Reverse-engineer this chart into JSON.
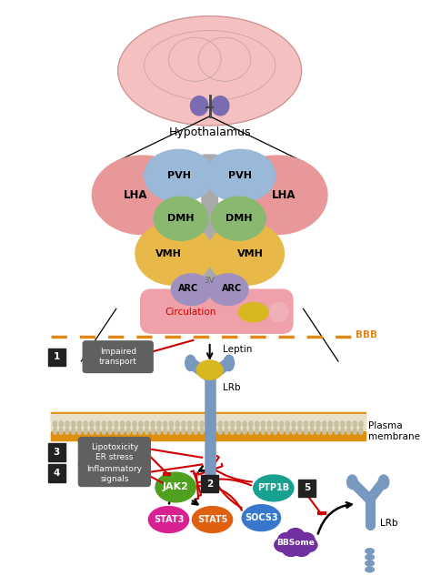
{
  "bg_color": "#ffffff",
  "brain_color": "#f5c0c0",
  "brain_outline": "#c89090",
  "hypo_color": "#7b6bb0",
  "pvh_color": "#9ab8d8",
  "lha_color": "#e89898",
  "dmh_color": "#8ab870",
  "vmh_color": "#e8b848",
  "arc_color": "#a090c0",
  "v3_color": "#aaaaaa",
  "circulation_color": "#f0a0a8",
  "leptin_color": "#d8b820",
  "lrb_color": "#7898c0",
  "jak2_color": "#50a020",
  "stat3_color": "#d82090",
  "stat5_color": "#e06010",
  "socs3_color": "#3878cc",
  "ptp1b_color": "#18a090",
  "bbsome_color": "#7030a0",
  "membrane_top_color": "#e09010",
  "membrane_mid_color": "#d0d0c0",
  "box_color": "#555555",
  "bbb_color": "#e08818",
  "red_line": "#cc0000",
  "black_line": "#000000",
  "gray_line": "#888888",
  "title": "Hypothalamus",
  "labels": {
    "pvh": "PVH",
    "lha": "LHA",
    "dmh": "DMH",
    "vmh": "VMH",
    "arc": "ARC",
    "v3": "3V",
    "circulation": "Circulation",
    "leptin": "Leptin",
    "lrb": "LRb",
    "lrb2": "LRb",
    "jak2": "JAK2",
    "stat3": "STAT3",
    "stat5": "STAT5",
    "socs3": "SOCS3",
    "ptp1b": "PTP1B",
    "bbsome": "BBSome",
    "bbb": "BBB",
    "plasma_membrane": "Plasma\nmembrane",
    "impaired": "Impaired\ntransport",
    "lipotox": "Lipotoxicity\nER stress",
    "inflam": "Inflammatory\nsignals",
    "num1": "1",
    "num2": "2",
    "num3": "3",
    "num4": "4",
    "num5": "5"
  }
}
